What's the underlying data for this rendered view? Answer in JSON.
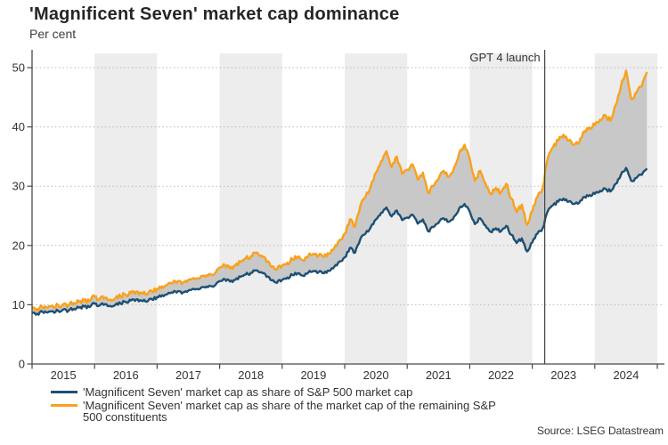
{
  "title": "'Magnificent Seven' market cap dominance",
  "subtitle": "Per cent",
  "source": "Source: LSEG Datastream",
  "annotation": {
    "label": "GPT 4 launch",
    "x_year": 2023.2
  },
  "shaded_years": [
    2016,
    2018,
    2020,
    2022,
    2024
  ],
  "colors": {
    "series_blue": "#1d4f74",
    "series_orange": "#f9a11b",
    "fill_between": "#c8c8c8",
    "year_band": "#ededed",
    "gridline": "#b8b8b8",
    "axis": "#4a4a4a",
    "text": "#333333",
    "annotation_line": "#444444"
  },
  "axes": {
    "y_ticks": [
      0,
      10,
      20,
      30,
      40,
      50
    ],
    "x_ticks": [
      2015,
      2016,
      2017,
      2018,
      2019,
      2020,
      2021,
      2022,
      2023,
      2024,
      2025
    ],
    "x_labels": [
      "2015",
      "2016",
      "2017",
      "2018",
      "2019",
      "2020",
      "2021",
      "2022",
      "2023",
      "2024"
    ]
  },
  "legend": [
    {
      "label": "'Magnificent Seven' market cap as share of S&P 500 market cap",
      "color": "#1d4f74"
    },
    {
      "label": "'Magnificent Seven' market cap as share of the market cap of the remaining S&P 500 constituents",
      "color": "#f9a11b"
    }
  ],
  "chart_data": {
    "type": "line",
    "title": "'Magnificent Seven' market cap dominance",
    "ylabel": "Per cent",
    "ylim": [
      0,
      50
    ],
    "xlim": [
      2015,
      2025
    ],
    "grid": "dotted horizontal",
    "legend_position": "bottom-left",
    "x_start_year": 2015.0,
    "x_step_months": 1,
    "x_end_year": 2024.83,
    "series": [
      {
        "name": "'Magnificent Seven' market cap as share of S&P 500 market cap",
        "color": "#1d4f74",
        "values": [
          8.6,
          8.5,
          8.8,
          8.7,
          8.9,
          9.0,
          9.2,
          9.0,
          9.3,
          9.5,
          9.7,
          9.6,
          10.2,
          9.9,
          10.1,
          9.8,
          10.0,
          10.2,
          10.5,
          10.7,
          10.9,
          10.7,
          10.5,
          10.9,
          11.3,
          11.6,
          11.8,
          12.0,
          12.3,
          12.1,
          12.4,
          12.7,
          12.6,
          13.0,
          13.2,
          13.2,
          14.0,
          14.3,
          13.9,
          14.2,
          14.7,
          15.1,
          15.4,
          15.8,
          15.5,
          14.7,
          14.1,
          13.7,
          14.2,
          14.6,
          15.0,
          15.3,
          14.9,
          15.4,
          15.7,
          15.5,
          15.3,
          15.7,
          16.4,
          17.3,
          18.0,
          19.6,
          18.8,
          21.1,
          22.0,
          23.1,
          24.4,
          25.5,
          26.4,
          24.9,
          25.9,
          24.3,
          24.7,
          25.2,
          23.7,
          24.4,
          22.4,
          23.1,
          23.8,
          24.6,
          24.0,
          24.9,
          26.3,
          27.0,
          25.7,
          23.6,
          24.6,
          23.4,
          22.3,
          22.9,
          22.4,
          23.3,
          21.8,
          20.4,
          21.2,
          19.0,
          20.5,
          22.0,
          22.9,
          25.8,
          26.8,
          27.4,
          27.9,
          27.4,
          27.0,
          27.2,
          28.2,
          28.5,
          28.7,
          29.2,
          29.6,
          29.1,
          30.4,
          31.9,
          33.1,
          30.9,
          31.4,
          31.9,
          33.0
        ]
      },
      {
        "name": "'Magnificent Seven' market cap as share of the market cap of the remaining S&P 500 constituents",
        "color": "#f9a11b",
        "values": [
          9.4,
          9.3,
          9.6,
          9.5,
          9.8,
          9.9,
          10.1,
          9.9,
          10.3,
          10.5,
          10.7,
          10.6,
          11.4,
          11.0,
          11.2,
          10.9,
          11.1,
          11.4,
          11.7,
          12.0,
          12.2,
          12.0,
          11.7,
          12.2,
          12.7,
          13.1,
          13.4,
          13.6,
          14.0,
          13.8,
          14.2,
          14.5,
          14.4,
          14.9,
          15.2,
          15.2,
          16.3,
          16.7,
          16.1,
          16.6,
          17.2,
          17.8,
          18.2,
          18.8,
          18.3,
          17.2,
          16.4,
          15.9,
          16.6,
          17.1,
          17.6,
          18.1,
          17.5,
          18.2,
          18.6,
          18.3,
          18.1,
          18.6,
          19.6,
          20.9,
          22.0,
          24.4,
          23.2,
          26.7,
          28.2,
          30.0,
          32.3,
          34.2,
          35.9,
          33.2,
          35.0,
          32.1,
          32.8,
          33.7,
          31.1,
          32.3,
          28.9,
          30.0,
          31.2,
          32.6,
          31.6,
          33.2,
          35.7,
          37.0,
          34.6,
          30.9,
          32.6,
          30.5,
          28.7,
          29.7,
          28.9,
          30.4,
          27.9,
          25.6,
          26.9,
          23.5,
          25.8,
          28.2,
          29.7,
          34.8,
          36.6,
          37.7,
          38.7,
          37.7,
          37.0,
          37.4,
          39.3,
          39.9,
          40.3,
          41.2,
          42.0,
          41.0,
          43.7,
          46.8,
          49.5,
          44.7,
          45.8,
          46.8,
          49.3
        ]
      }
    ]
  }
}
